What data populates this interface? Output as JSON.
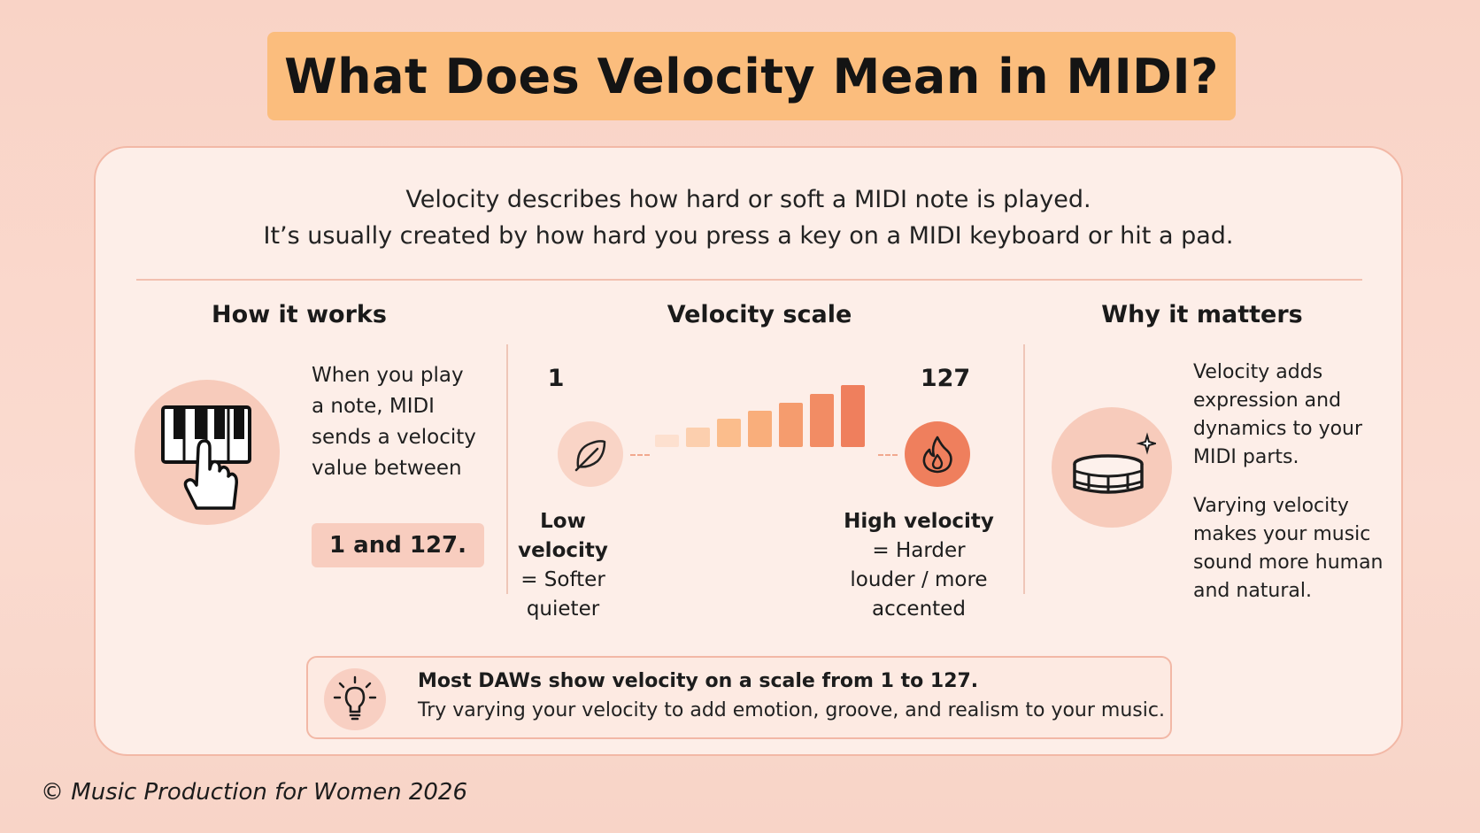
{
  "title": "What Does Velocity Mean in MIDI?",
  "intro": {
    "line1": "Velocity describes how hard or soft a MIDI note is played.",
    "line2": "It’s usually created by how hard you press a key on a MIDI keyboard or hit a pad."
  },
  "how_it_works": {
    "heading": "How it works",
    "icon": "piano-keyboard-hand-icon",
    "lines": [
      "When you play",
      "a note, MIDI",
      "sends a velocity",
      "value between"
    ],
    "range": "1 and 127."
  },
  "velocity_scale": {
    "heading": "Velocity scale",
    "min": "1",
    "max": "127",
    "low_icon": "feather-leaf-icon",
    "high_icon": "flame-icon",
    "bars": [
      0.2,
      0.32,
      0.45,
      0.58,
      0.72,
      0.86,
      1.0
    ],
    "bar_colors": [
      "#fde0cf",
      "#fccfae",
      "#fbbd8c",
      "#f9ae7b",
      "#f59c6e",
      "#f28c64",
      "#ef7f5d"
    ],
    "low_title": "Low velocity",
    "low_lines": [
      "= Softer",
      "quieter"
    ],
    "high_title": "High velocity",
    "high_lines": [
      "= Harder",
      "louder / more",
      "accented"
    ]
  },
  "why_it_matters": {
    "heading": "Why it matters",
    "icon": "snare-drum-icon",
    "para1": [
      "Velocity adds",
      "expression and",
      "dynamics to your",
      "MIDI parts."
    ],
    "para2": [
      "Varying velocity",
      "makes your music",
      "sound more human",
      "and natural."
    ]
  },
  "tip": {
    "icon": "lightbulb-icon",
    "line1": "Most DAWs show velocity on a scale from 1 to 127.",
    "line2": "Try varying your velocity to add emotion, groove, and realism to your music."
  },
  "footer": "© Music Production for Women 2026",
  "colors": {
    "banner": "#fbbd7d",
    "accent": "#ef7f5d",
    "background": "#f9d3c6"
  }
}
